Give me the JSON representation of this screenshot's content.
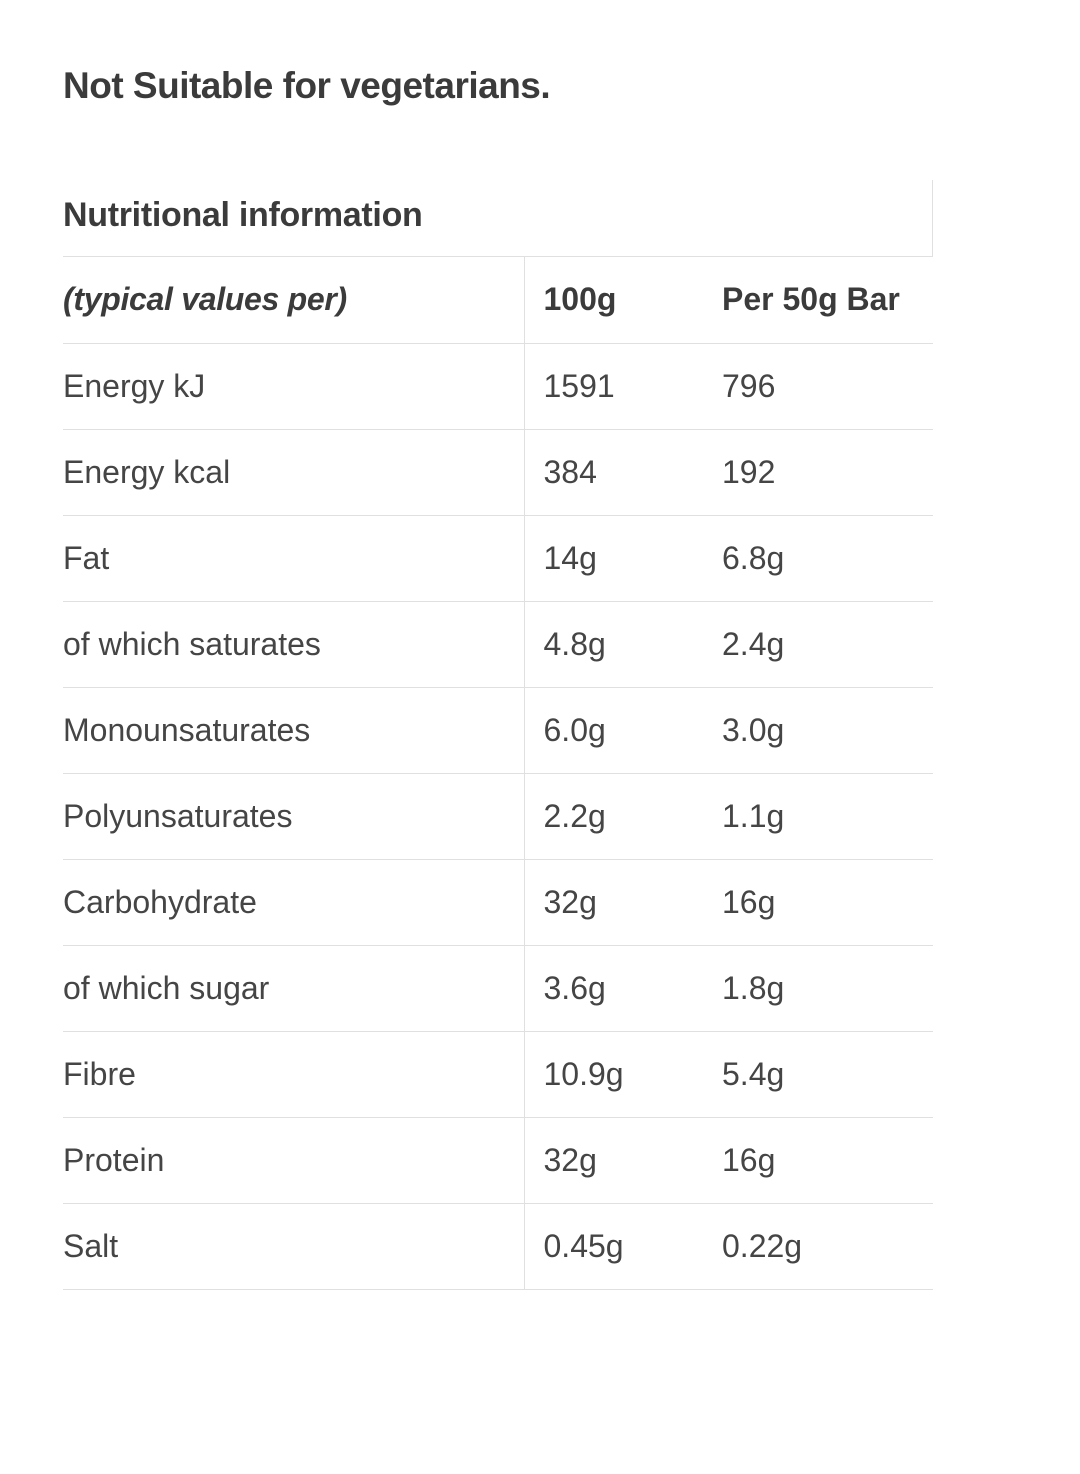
{
  "notice": {
    "text": "Not Suitable for vegetarians."
  },
  "section": {
    "title": "Nutritional information"
  },
  "table": {
    "header": {
      "label": "(typical values per)",
      "per_100g": "100g",
      "per_50g_bar": "Per 50g Bar"
    },
    "rows": [
      {
        "label": "Energy kJ",
        "per_100g": "1591",
        "per_50g_bar": "796"
      },
      {
        "label": "Energy kcal",
        "per_100g": "384",
        "per_50g_bar": "192"
      },
      {
        "label": "Fat",
        "per_100g": "14g",
        "per_50g_bar": "6.8g"
      },
      {
        "label": "of which saturates",
        "per_100g": "4.8g",
        "per_50g_bar": "2.4g"
      },
      {
        "label": "Monounsaturates",
        "per_100g": "6.0g",
        "per_50g_bar": "3.0g"
      },
      {
        "label": "Polyunsaturates",
        "per_100g": "2.2g",
        "per_50g_bar": "1.1g"
      },
      {
        "label": "Carbohydrate",
        "per_100g": "32g",
        "per_50g_bar": "16g"
      },
      {
        "label": "of which sugar",
        "per_100g": "3.6g",
        "per_50g_bar": "1.8g"
      },
      {
        "label": "Fibre",
        "per_100g": "10.9g",
        "per_50g_bar": "5.4g"
      },
      {
        "label": "Protein",
        "per_100g": "32g",
        "per_50g_bar": "16g"
      },
      {
        "label": "Salt",
        "per_100g": "0.45g",
        "per_50g_bar": "0.22g"
      }
    ]
  },
  "colors": {
    "heading_text": "#3b3b3b",
    "body_text": "#454545",
    "rule": "#e0e0e0"
  }
}
